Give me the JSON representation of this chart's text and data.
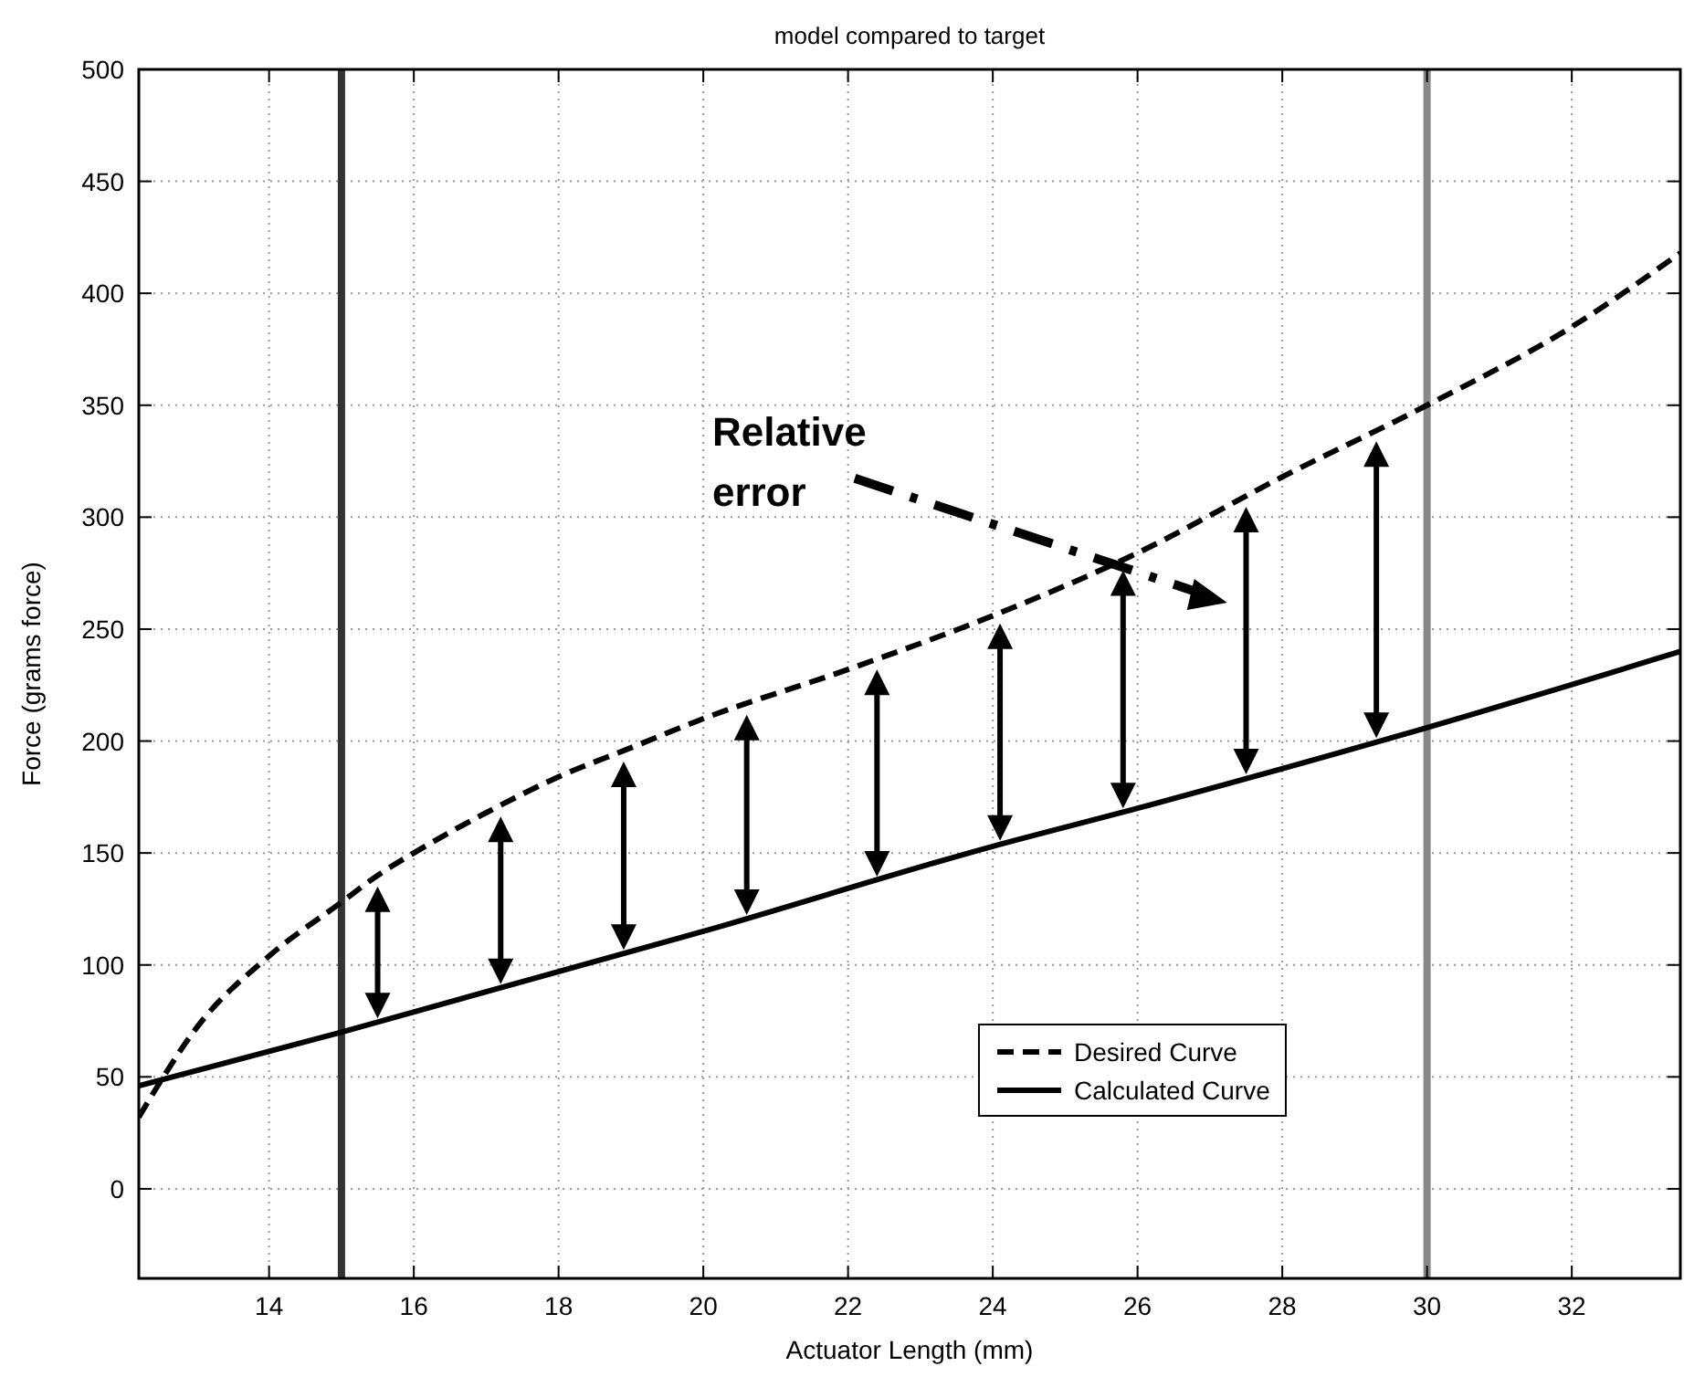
{
  "chart_data": {
    "type": "line",
    "title": "model compared to target",
    "xlabel": "Actuator Length (mm)",
    "ylabel": "Force (grams force)",
    "xlim": [
      12.2,
      33.5
    ],
    "xticks": [
      14,
      16,
      18,
      20,
      22,
      24,
      26,
      28,
      30,
      32
    ],
    "ylim": [
      -40,
      500
    ],
    "yticks": [
      0,
      50,
      100,
      150,
      200,
      250,
      300,
      350,
      400,
      450,
      500
    ],
    "grid": true,
    "legend": "bottom right",
    "series": [
      {
        "name": "Desired Curve",
        "color": "#000000",
        "line_style": "dashed",
        "x": [
          12.2,
          12.5,
          13,
          14,
          15,
          15.5,
          16,
          17,
          18,
          19,
          20,
          22,
          24,
          26,
          28,
          30,
          32,
          33.5
        ],
        "values": [
          32,
          48,
          72,
          104,
          128,
          140,
          150,
          168,
          184,
          197,
          210,
          232,
          256,
          284,
          318,
          350,
          385,
          418
        ]
      },
      {
        "name": "Calculated Curve",
        "color": "#000000",
        "line_style": "solid",
        "x": [
          12.2,
          15,
          20,
          24,
          26,
          30,
          33.5
        ],
        "values": [
          46,
          70,
          115,
          153,
          170,
          206,
          240
        ]
      }
    ],
    "ref_lines": [
      {
        "axis": "x",
        "value": 15,
        "color": "#333333"
      },
      {
        "axis": "x",
        "value": 30,
        "color": "#888888"
      }
    ],
    "annotations": [
      "Relative error"
    ]
  }
}
